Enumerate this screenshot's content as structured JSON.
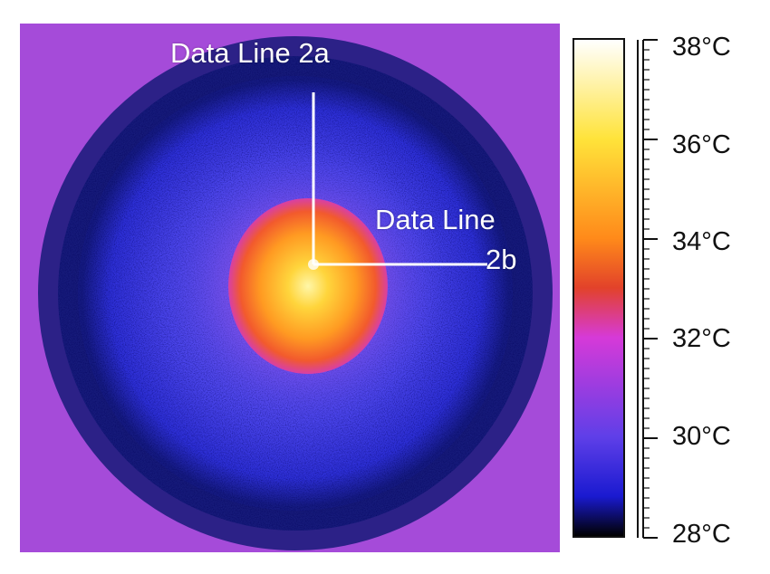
{
  "annotations": {
    "data_line_2a": "Data Line 2a",
    "data_line_2b_line1": "Data Line",
    "data_line_2b_line2": "2b"
  },
  "colorbar": {
    "labels": [
      "38°C",
      "36°C",
      "34°C",
      "32°C",
      "30°C",
      "28°C"
    ],
    "min_c": 28,
    "max_c": 38,
    "colors": {
      "c38": "#ffffff",
      "c36": "#ffe33a",
      "c34": "#ff8a1a",
      "c33": "#e2422a",
      "c32": "#d63ad8",
      "c30": "#5f3fe8",
      "c29": "#1a1ad0",
      "c28": "#000000"
    }
  },
  "colors": {
    "background_purple": "#a54bd9",
    "ring_dark_blue": "#141a7a",
    "mid_blue": "#3436e6",
    "hot_orange": "#ff8d1d",
    "core_yellow": "#ffe04b"
  }
}
